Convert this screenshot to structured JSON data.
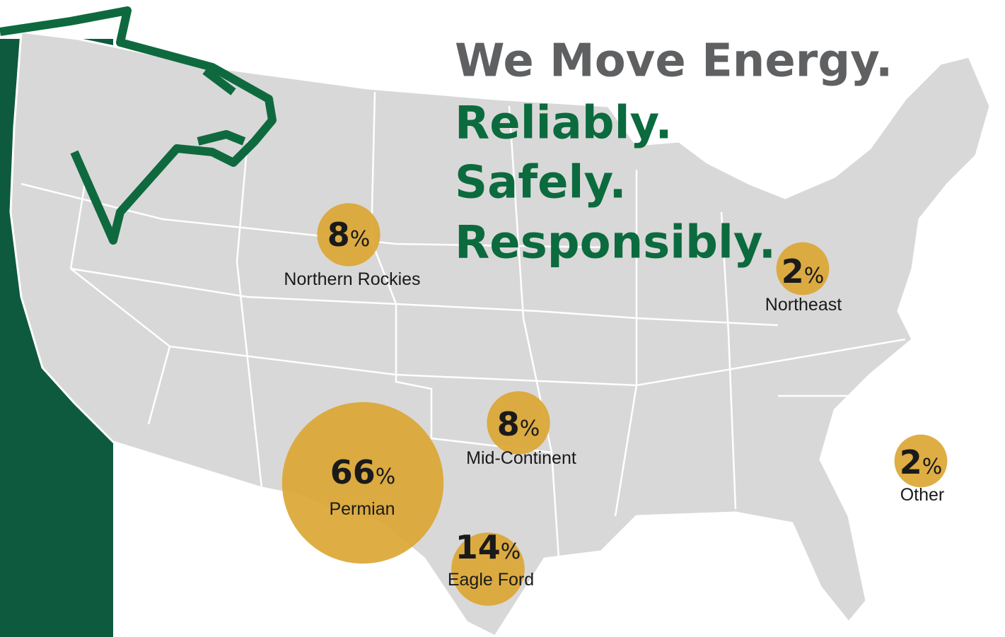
{
  "headline": [
    "We Move Energy.",
    "Reliably.",
    "Safely.",
    "Responsibly."
  ],
  "regions": [
    {
      "value": 8,
      "unit": "%",
      "name": "Northern Rockies"
    },
    {
      "value": 2,
      "unit": "%",
      "name": "Northeast"
    },
    {
      "value": 8,
      "unit": "%",
      "name": "Mid-Continent"
    },
    {
      "value": 2,
      "unit": "%",
      "name": "Other"
    },
    {
      "value": 66,
      "unit": "%",
      "name": "Permian"
    },
    {
      "value": 14,
      "unit": "%",
      "name": "Eagle Ford"
    }
  ]
}
